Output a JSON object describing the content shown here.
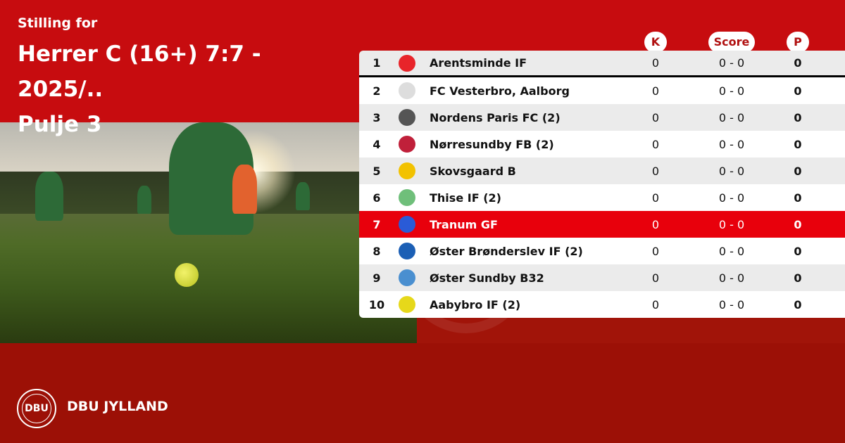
{
  "header": {
    "subtitle": "Stilling for",
    "title_line1": "Herrer C (16+) 7:7 - 2025/..",
    "title_line2": "Pulje 3"
  },
  "columns": {
    "k": "K",
    "score": "Score",
    "p": "P"
  },
  "colors": {
    "brand_red": "#c70c0f",
    "footer_red": "#9c1006",
    "highlight_red": "#e8000c"
  },
  "rows": [
    {
      "pos": "1",
      "team": "Arentsminde IF",
      "k": "0",
      "score": "0 - 0",
      "p": "0",
      "logo_color": "#e8242a"
    },
    {
      "pos": "2",
      "team": "FC Vesterbro, Aalborg",
      "k": "0",
      "score": "0 - 0",
      "p": "0",
      "logo_color": "#dddddd"
    },
    {
      "pos": "3",
      "team": "Nordens Paris FC (2)",
      "k": "0",
      "score": "0 - 0",
      "p": "0",
      "logo_color": "#555555"
    },
    {
      "pos": "4",
      "team": "Nørresundby FB (2)",
      "k": "0",
      "score": "0 - 0",
      "p": "0",
      "logo_color": "#c0203a"
    },
    {
      "pos": "5",
      "team": "Skovsgaard B",
      "k": "0",
      "score": "0 - 0",
      "p": "0",
      "logo_color": "#f2c200"
    },
    {
      "pos": "6",
      "team": "Thise IF (2)",
      "k": "0",
      "score": "0 - 0",
      "p": "0",
      "logo_color": "#6fbf7a"
    },
    {
      "pos": "7",
      "team": "Tranum GF",
      "k": "0",
      "score": "0 - 0",
      "p": "0",
      "logo_color": "#2a5bd7",
      "highlighted": true
    },
    {
      "pos": "8",
      "team": "Øster Brønderslev IF (2)",
      "k": "0",
      "score": "0 - 0",
      "p": "0",
      "logo_color": "#1b5fb5"
    },
    {
      "pos": "9",
      "team": "Øster Sundby B32",
      "k": "0",
      "score": "0 - 0",
      "p": "0",
      "logo_color": "#4a8fd0"
    },
    {
      "pos": "10",
      "team": "Aabybro IF (2)",
      "k": "0",
      "score": "0 - 0",
      "p": "0",
      "logo_color": "#e6d81a"
    }
  ],
  "footer": {
    "brand": "DBU JYLLAND",
    "logo_text": "DBU"
  }
}
